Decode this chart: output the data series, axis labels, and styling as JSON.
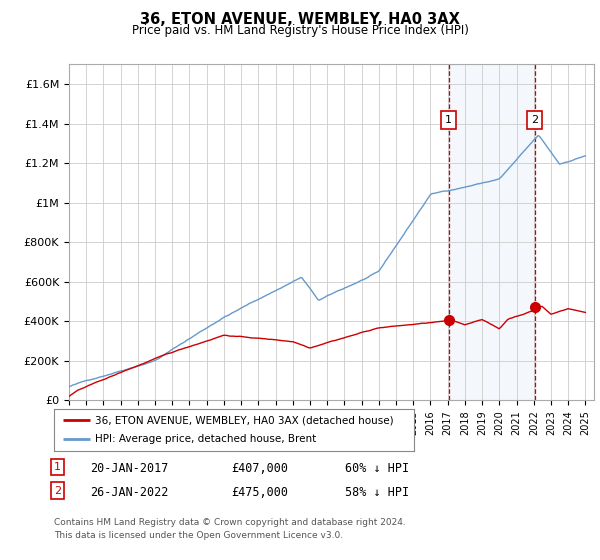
{
  "title": "36, ETON AVENUE, WEMBLEY, HA0 3AX",
  "subtitle": "Price paid vs. HM Land Registry's House Price Index (HPI)",
  "footer": "Contains HM Land Registry data © Crown copyright and database right 2024.\nThis data is licensed under the Open Government Licence v3.0.",
  "legend_line1": "36, ETON AVENUE, WEMBLEY, HA0 3AX (detached house)",
  "legend_line2": "HPI: Average price, detached house, Brent",
  "annotation1": {
    "label": "1",
    "date": "20-JAN-2017",
    "price": "£407,000",
    "pct": "60% ↓ HPI",
    "x_year": 2017.05
  },
  "annotation2": {
    "label": "2",
    "date": "26-JAN-2022",
    "price": "£475,000",
    "pct": "58% ↓ HPI",
    "x_year": 2022.05
  },
  "ylim": [
    0,
    1700000
  ],
  "xlim_start": 1995,
  "xlim_end": 2025.5,
  "yticks": [
    0,
    200000,
    400000,
    600000,
    800000,
    1000000,
    1200000,
    1400000,
    1600000
  ],
  "ytick_labels": [
    "£0",
    "£200K",
    "£400K",
    "£600K",
    "£800K",
    "£1M",
    "£1.2M",
    "£1.4M",
    "£1.6M"
  ],
  "price_color": "#cc0000",
  "hpi_color": "#6699cc",
  "vline_color": "#cc0000",
  "shade_color": "#ddeeff",
  "grid_color": "#cccccc",
  "background_color": "#ffffff",
  "dot1_x": 2017.05,
  "dot1_y": 407000,
  "dot2_x": 2022.05,
  "dot2_y": 475000
}
